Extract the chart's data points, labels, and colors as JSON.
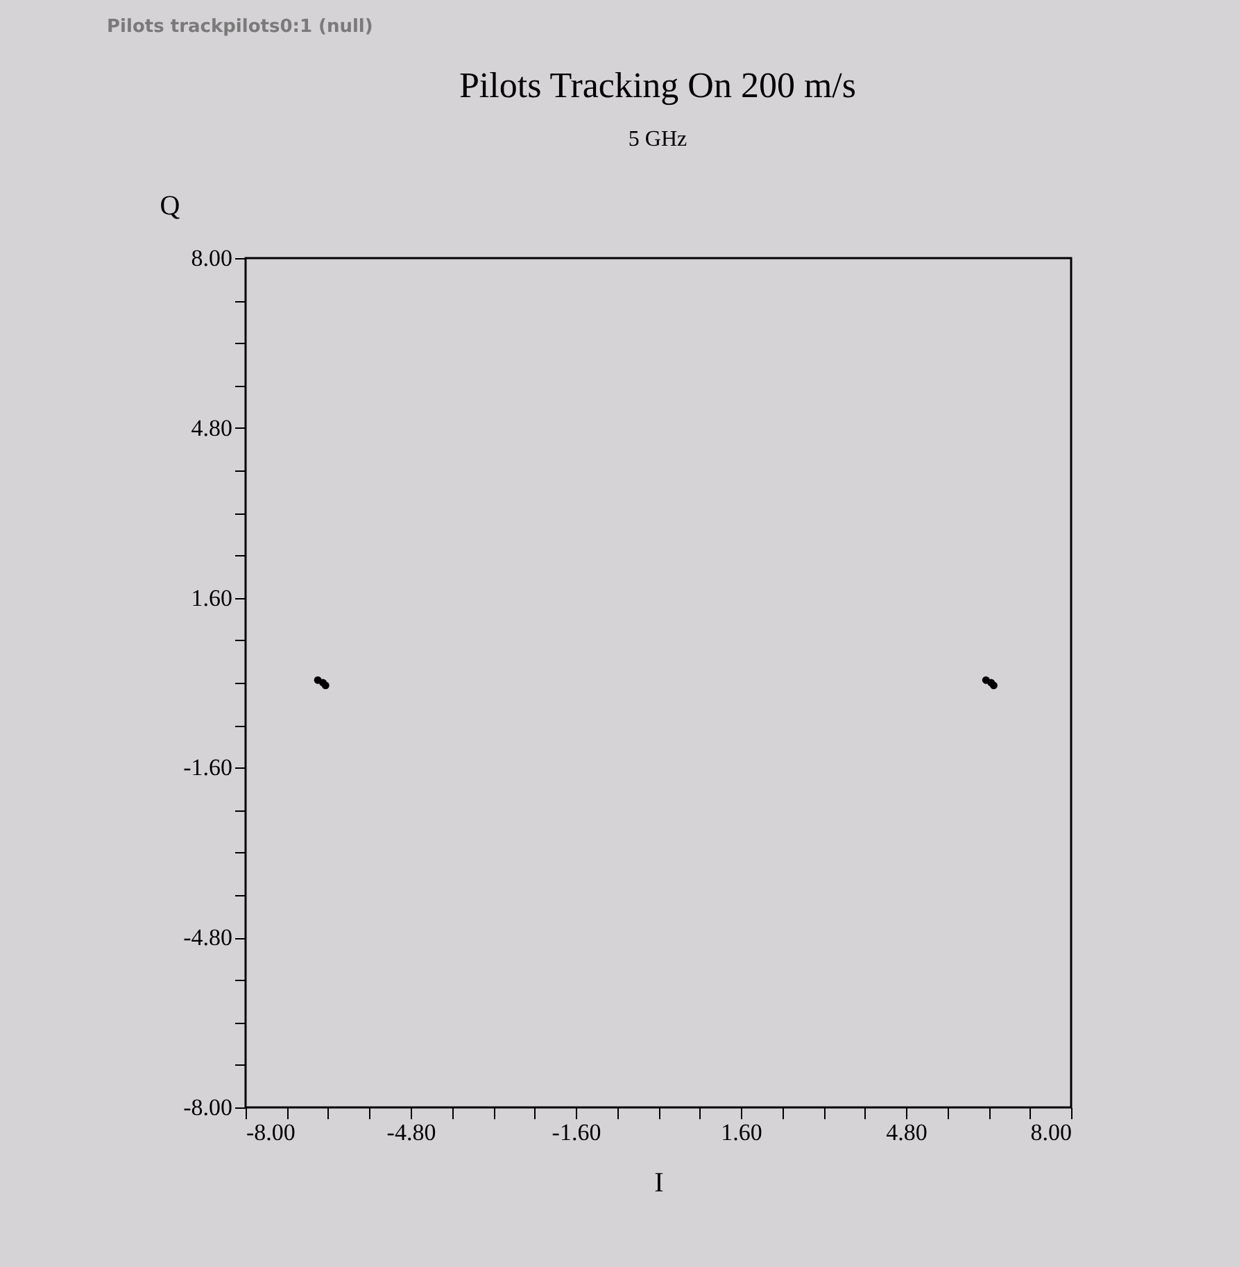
{
  "chart_data": {
    "type": "scatter",
    "title": "Pilots Tracking On 200 m/s",
    "subtitle": "5 GHz",
    "xlabel": "I",
    "ylabel": "Q",
    "annotations": [
      "Pilots trackpilots0:1 (null)"
    ],
    "series": [
      {
        "color": "#000000",
        "x": [
          -6.6,
          -6.5,
          -6.45,
          6.35,
          6.45,
          6.5
        ],
        "values": [
          0.05,
          0.0,
          -0.05,
          0.05,
          0.0,
          -0.05
        ]
      }
    ],
    "xlim": [
      -8,
      8
    ],
    "ylim": [
      -8,
      8
    ],
    "xticks": [
      {
        "value": -8,
        "label": "-8.00"
      },
      {
        "value": -7.2,
        "label": null
      },
      {
        "value": -6.4,
        "label": null
      },
      {
        "value": -5.6,
        "label": null
      },
      {
        "value": -4.8,
        "label": "-4.80"
      },
      {
        "value": -4.0,
        "label": null
      },
      {
        "value": -3.2,
        "label": null
      },
      {
        "value": -2.4,
        "label": null
      },
      {
        "value": -1.6,
        "label": "-1.60"
      },
      {
        "value": -0.8,
        "label": null
      },
      {
        "value": 0,
        "label": null
      },
      {
        "value": 0.8,
        "label": null
      },
      {
        "value": 1.6,
        "label": "1.60"
      },
      {
        "value": 2.4,
        "label": null
      },
      {
        "value": 3.2,
        "label": null
      },
      {
        "value": 4.0,
        "label": null
      },
      {
        "value": 4.8,
        "label": "4.80"
      },
      {
        "value": 5.6,
        "label": null
      },
      {
        "value": 6.4,
        "label": null
      },
      {
        "value": 7.2,
        "label": null
      },
      {
        "value": 8,
        "label": "8.00"
      }
    ],
    "yticks": [
      {
        "value": -8,
        "label": "-8.00"
      },
      {
        "value": -7.2,
        "label": null
      },
      {
        "value": -6.4,
        "label": null
      },
      {
        "value": -5.6,
        "label": null
      },
      {
        "value": -4.8,
        "label": "-4.80"
      },
      {
        "value": -4.0,
        "label": null
      },
      {
        "value": -3.2,
        "label": null
      },
      {
        "value": -2.4,
        "label": null
      },
      {
        "value": -1.6,
        "label": "-1.60"
      },
      {
        "value": -0.8,
        "label": null
      },
      {
        "value": 0,
        "label": null
      },
      {
        "value": 0.8,
        "label": null
      },
      {
        "value": 1.6,
        "label": "1.60"
      },
      {
        "value": 2.4,
        "label": null
      },
      {
        "value": 3.2,
        "label": null
      },
      {
        "value": 4.0,
        "label": null
      },
      {
        "value": 4.8,
        "label": "4.80"
      },
      {
        "value": 5.6,
        "label": null
      },
      {
        "value": 6.4,
        "label": null
      },
      {
        "value": 7.2,
        "label": null
      },
      {
        "value": 8,
        "label": "8.00"
      }
    ],
    "grid": false,
    "legend": false,
    "marker": "circle"
  }
}
